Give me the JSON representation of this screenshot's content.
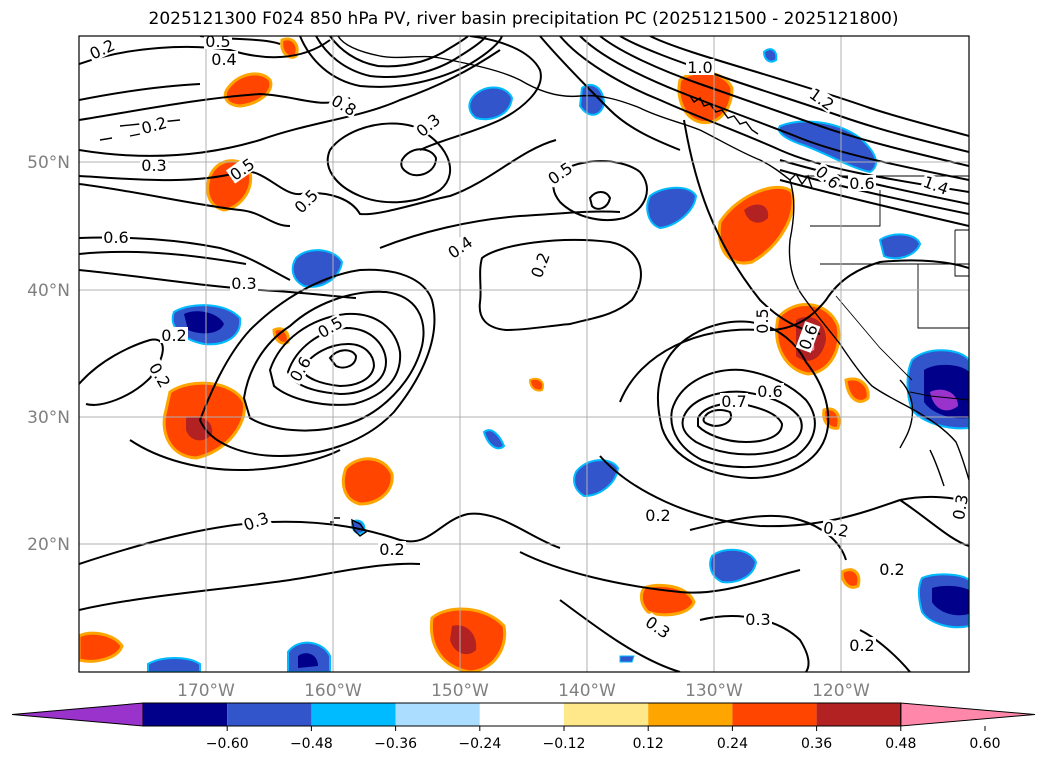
{
  "title": "2025121300 F024 850 hPa PV, river basin precipitation PC (2025121500 - 2025121800)",
  "lat_labels": [
    "50°N",
    "40°N",
    "30°N",
    "20°N"
  ],
  "lon_labels": [
    "170°W",
    "160°W",
    "150°W",
    "140°W",
    "130°W",
    "120°W"
  ],
  "contour_labels": [
    "0.2",
    "0.5",
    "0.4",
    "0.8",
    "1.0",
    "1.2",
    "1.4",
    "0.2",
    "0.3",
    "0.3",
    "0.5",
    "0.6",
    "0.5",
    "0.6",
    "0.6",
    "0.5",
    "0.3",
    "0.4",
    "0.2",
    "0.5",
    "0.6",
    "0.7",
    "0.6",
    "0.5",
    "0.6",
    "0.2",
    "0.2",
    "0.3",
    "0.2",
    "0.2",
    "0.2",
    "0.3",
    "0.3",
    "0.2",
    "0.3",
    "0.2"
  ],
  "colorbar": {
    "ticks": [
      "−0.60",
      "−0.48",
      "−0.36",
      "−0.24",
      "−0.12",
      "0.12",
      "0.24",
      "0.36",
      "0.48",
      "0.60"
    ],
    "colors": [
      "#9933cc",
      "#00008b",
      "#3355cc",
      "#00bbff",
      "#aaddff",
      "#ffffff",
      "#ffe88a",
      "#ffa500",
      "#ff4500",
      "#b22222",
      "#ff88aa"
    ]
  },
  "palette": {
    "land_outline": "#000000",
    "contour": "#000000",
    "grid": "#b0b0b0"
  }
}
